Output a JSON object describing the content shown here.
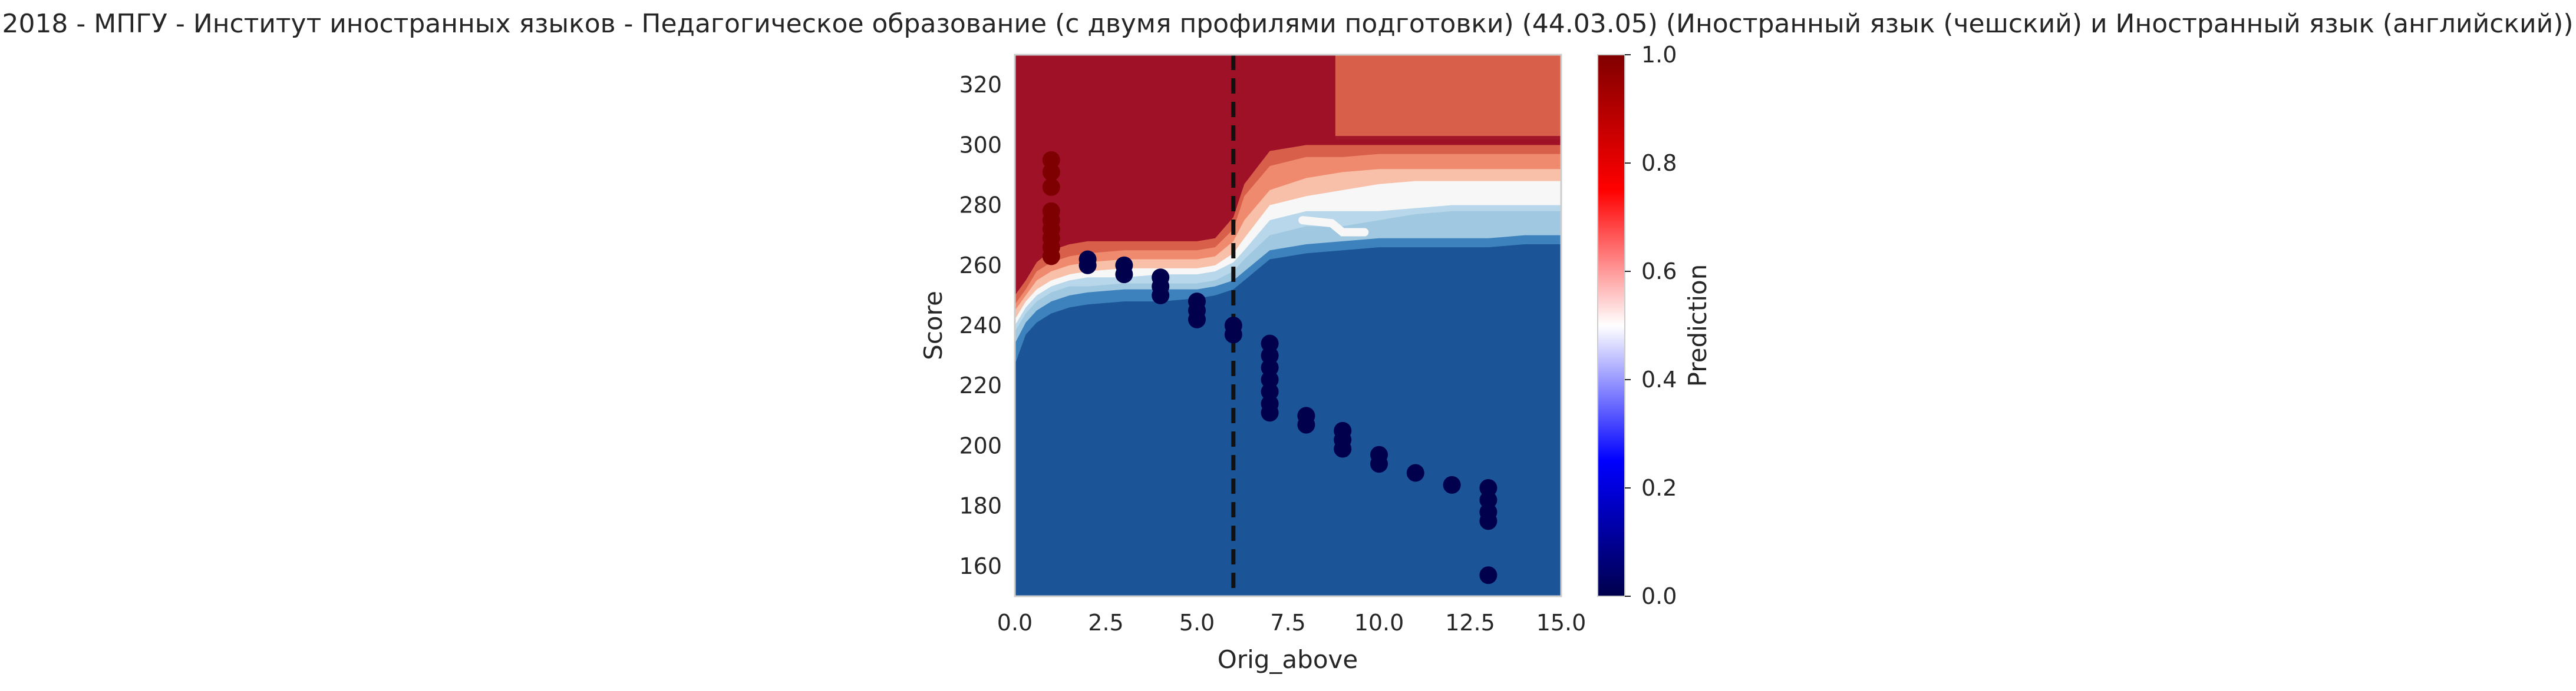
{
  "chart_data": {
    "type": "heatmap",
    "title": "2018 - МПГУ - Институт иностранных языков - Педагогическое образование (с двумя профилями подготовки) (44.03.05) (Иностранный язык (чешский) и Иностранный язык (английский))",
    "xlabel": "Orig_above",
    "ylabel": "Score",
    "colorbar_label": "Prediction",
    "xlim": [
      0,
      15
    ],
    "ylim": [
      150,
      330
    ],
    "x_ticks": [
      0,
      2.5,
      5,
      7.5,
      10,
      12.5,
      15
    ],
    "x_tick_labels": [
      "0.0",
      "2.5",
      "5.0",
      "7.5",
      "10.0",
      "12.5",
      "15.0"
    ],
    "y_ticks": [
      160,
      180,
      200,
      220,
      240,
      260,
      280,
      300,
      320
    ],
    "y_tick_labels": [
      "160",
      "180",
      "200",
      "220",
      "240",
      "260",
      "280",
      "300",
      "320"
    ],
    "colorbar_ticks": [
      0,
      0.2,
      0.4,
      0.6,
      0.8,
      1.0
    ],
    "colorbar_tick_labels": [
      "0.0",
      "0.2",
      "0.4",
      "0.6",
      "0.8",
      "1.0"
    ],
    "colormap": "seismic",
    "colormap_stops": [
      "#00004c",
      "#0000ff",
      "#ffffff",
      "#ff0000",
      "#800000"
    ],
    "contour_colors": [
      "#1b5597",
      "#3d82bd",
      "#a0c9e1",
      "#b8d7ea",
      "#f7f7f7",
      "#f8c0a8",
      "#f08a6e",
      "#d8604a",
      "#9e1127"
    ],
    "grid": false,
    "cutoff_line_x": 6,
    "boundaries": [
      {
        "name": "b1",
        "x": [
          0,
          0.3,
          0.6,
          1,
          1.5,
          2,
          3,
          4,
          5,
          5.5,
          6,
          6.3,
          7,
          8,
          9,
          10,
          11,
          12,
          13,
          14,
          15
        ],
        "y": [
          227,
          237,
          241,
          244,
          246,
          247,
          248,
          248,
          249,
          250,
          252,
          255,
          262,
          264,
          265,
          266,
          266,
          266,
          266,
          267,
          267
        ]
      },
      {
        "name": "b2",
        "x": [
          0,
          0.3,
          0.6,
          1,
          1.5,
          2,
          3,
          4,
          5,
          5.5,
          6,
          6.3,
          7,
          8,
          9,
          10,
          11,
          12,
          13,
          14,
          15
        ],
        "y": [
          234,
          241,
          245,
          248,
          250,
          251,
          252,
          252,
          252,
          253,
          255,
          258,
          265,
          267,
          268,
          269,
          269,
          269,
          269,
          270,
          270
        ]
      },
      {
        "name": "b3",
        "x": [
          0,
          0.3,
          0.6,
          1,
          1.5,
          2,
          3,
          4,
          5,
          5.5,
          6,
          6.3,
          7,
          8,
          9,
          10,
          11,
          12,
          13,
          14,
          15
        ],
        "y": [
          238,
          244,
          248,
          251,
          253,
          253,
          254,
          254,
          254,
          255,
          258,
          262,
          270,
          273,
          273,
          275,
          277,
          278,
          278,
          278,
          278
        ]
      },
      {
        "name": "b4",
        "x": [
          0,
          0.3,
          0.6,
          1,
          1.5,
          2,
          3,
          4,
          5,
          5.5,
          6,
          6.3,
          7,
          8,
          9,
          10,
          11,
          12,
          13,
          14,
          15
        ],
        "y": [
          240,
          246,
          250,
          253,
          255,
          256,
          256,
          257,
          257,
          258,
          261,
          265,
          275,
          278,
          278,
          278,
          279,
          280,
          280,
          280,
          280
        ]
      },
      {
        "name": "b5",
        "x": [
          0,
          0.3,
          0.6,
          1,
          1.5,
          2,
          3,
          4,
          5,
          5.5,
          6,
          6.3,
          7,
          8,
          9,
          10,
          11,
          12,
          13,
          14,
          15
        ],
        "y": [
          242,
          248,
          252,
          255,
          257,
          258,
          259,
          259,
          259,
          260,
          264,
          269,
          280,
          283,
          285,
          287,
          288,
          288,
          288,
          288,
          288
        ]
      },
      {
        "name": "b6",
        "x": [
          0,
          0.3,
          0.6,
          1,
          1.5,
          2,
          3,
          4,
          5,
          5.5,
          6,
          6.3,
          7,
          8,
          9,
          10,
          11,
          12,
          13,
          14,
          15
        ],
        "y": [
          245,
          250,
          255,
          258,
          260,
          261,
          262,
          262,
          262,
          263,
          268,
          275,
          285,
          289,
          291,
          292,
          292,
          292,
          292,
          292,
          292
        ]
      },
      {
        "name": "b7",
        "x": [
          0,
          0.3,
          0.6,
          1,
          1.5,
          2,
          3,
          4,
          5,
          5.5,
          6,
          6.3,
          7,
          8,
          9,
          10,
          11,
          12,
          13,
          14,
          15
        ],
        "y": [
          247,
          252,
          258,
          261,
          263,
          264,
          265,
          265,
          265,
          266,
          272,
          283,
          293,
          296,
          296,
          297,
          297,
          297,
          297,
          297,
          297
        ]
      },
      {
        "name": "b8",
        "x": [
          0,
          0.3,
          0.6,
          1,
          1.5,
          2,
          3,
          4,
          5,
          5.5,
          6,
          6.3,
          7,
          8,
          8.8,
          9,
          10,
          11,
          12,
          13,
          14,
          15
        ],
        "y": [
          250,
          255,
          261,
          265,
          267,
          268,
          268,
          268,
          268,
          269,
          276,
          287,
          298,
          300,
          300,
          300,
          300,
          300,
          300,
          300,
          300,
          300
        ]
      }
    ],
    "upper_region": {
      "x_from": 8.8,
      "y_from": 303
    },
    "streak": {
      "x": [
        7.9,
        8.7,
        9,
        9.6
      ],
      "y": [
        275,
        274,
        271,
        271
      ]
    },
    "points": [
      {
        "x": 1,
        "y": 295,
        "v": 1
      },
      {
        "x": 1,
        "y": 291,
        "v": 1
      },
      {
        "x": 1,
        "y": 286,
        "v": 1
      },
      {
        "x": 1,
        "y": 278,
        "v": 1
      },
      {
        "x": 1,
        "y": 275,
        "v": 1
      },
      {
        "x": 1,
        "y": 272,
        "v": 1
      },
      {
        "x": 1,
        "y": 269,
        "v": 1
      },
      {
        "x": 1,
        "y": 266,
        "v": 1
      },
      {
        "x": 1,
        "y": 263,
        "v": 1
      },
      {
        "x": 2,
        "y": 262,
        "v": 0
      },
      {
        "x": 2,
        "y": 260,
        "v": 0
      },
      {
        "x": 3,
        "y": 260,
        "v": 0
      },
      {
        "x": 3,
        "y": 257,
        "v": 0
      },
      {
        "x": 4,
        "y": 256,
        "v": 0
      },
      {
        "x": 4,
        "y": 253,
        "v": 0
      },
      {
        "x": 4,
        "y": 250,
        "v": 0
      },
      {
        "x": 5,
        "y": 248,
        "v": 0
      },
      {
        "x": 5,
        "y": 245,
        "v": 0
      },
      {
        "x": 5,
        "y": 242,
        "v": 0
      },
      {
        "x": 6,
        "y": 240,
        "v": 0
      },
      {
        "x": 6,
        "y": 237,
        "v": 0
      },
      {
        "x": 7,
        "y": 234,
        "v": 0
      },
      {
        "x": 7,
        "y": 230,
        "v": 0
      },
      {
        "x": 7,
        "y": 226,
        "v": 0
      },
      {
        "x": 7,
        "y": 222,
        "v": 0
      },
      {
        "x": 7,
        "y": 218,
        "v": 0
      },
      {
        "x": 7,
        "y": 214,
        "v": 0
      },
      {
        "x": 7,
        "y": 211,
        "v": 0
      },
      {
        "x": 8,
        "y": 210,
        "v": 0
      },
      {
        "x": 8,
        "y": 207,
        "v": 0
      },
      {
        "x": 9,
        "y": 205,
        "v": 0
      },
      {
        "x": 9,
        "y": 202,
        "v": 0
      },
      {
        "x": 9,
        "y": 199,
        "v": 0
      },
      {
        "x": 10,
        "y": 197,
        "v": 0
      },
      {
        "x": 10,
        "y": 194,
        "v": 0
      },
      {
        "x": 11,
        "y": 191,
        "v": 0
      },
      {
        "x": 12,
        "y": 187,
        "v": 0
      },
      {
        "x": 13,
        "y": 186,
        "v": 0
      },
      {
        "x": 13,
        "y": 182,
        "v": 0
      },
      {
        "x": 13,
        "y": 178,
        "v": 0
      },
      {
        "x": 13,
        "y": 175,
        "v": 0
      },
      {
        "x": 13,
        "y": 157,
        "v": 0
      }
    ]
  }
}
